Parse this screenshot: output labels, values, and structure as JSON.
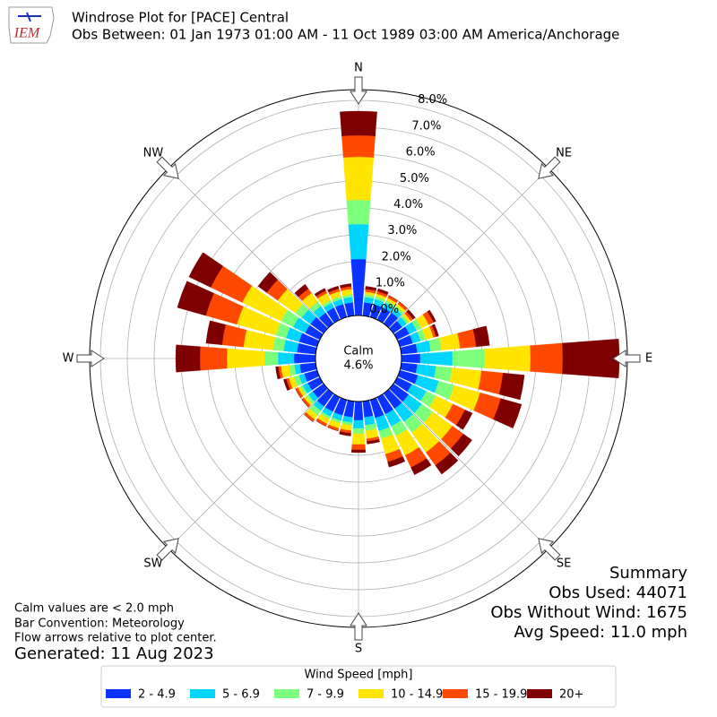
{
  "logo_text": "IEM",
  "chart_data": {
    "type": "windrose",
    "title": "Windrose Plot for [PACE] Central",
    "subtitle": "Obs Between: 01 Jan 1973 01:00 AM - 11 Oct 1989 03:00 AM America/Anchorage",
    "compass": [
      "N",
      "NE",
      "E",
      "SE",
      "S",
      "SW",
      "W",
      "NW"
    ],
    "x": [
      0,
      10,
      20,
      30,
      40,
      50,
      60,
      70,
      80,
      90,
      100,
      110,
      120,
      130,
      140,
      150,
      160,
      170,
      180,
      190,
      200,
      210,
      220,
      230,
      240,
      250,
      260,
      270,
      280,
      290,
      300,
      310,
      320,
      330,
      340,
      350
    ],
    "ylim": [
      0,
      8.4
    ],
    "yticks": [
      {
        "value": 0,
        "label": "0.0%"
      },
      {
        "value": 1,
        "label": "1.0%"
      },
      {
        "value": 2,
        "label": "2.0%"
      },
      {
        "value": 3,
        "label": "3.0%"
      },
      {
        "value": 4,
        "label": "4.0%"
      },
      {
        "value": 5,
        "label": "5.0%"
      },
      {
        "value": 6,
        "label": "6.0%"
      },
      {
        "value": 7,
        "label": "7.0%"
      },
      {
        "value": 8,
        "label": "8.0%"
      }
    ],
    "grid": true,
    "calm_label": "Calm",
    "calm": {
      "value": 4.6,
      "label": "4.6%"
    },
    "legend_title": "Wind Speed [mph]",
    "series": [
      {
        "name": "2 - 4.9",
        "color": "#0a33ff",
        "values": [
          2.1,
          0.5,
          0.5,
          0.5,
          0.5,
          0.4,
          0.5,
          0.5,
          0.6,
          0.7,
          0.6,
          0.7,
          0.6,
          0.7,
          0.7,
          0.7,
          0.7,
          0.6,
          0.7,
          0.6,
          0.6,
          0.6,
          0.6,
          0.5,
          0.5,
          0.5,
          0.6,
          0.8,
          0.7,
          0.7,
          0.6,
          0.6,
          0.5,
          0.5,
          0.5,
          0.5
        ]
      },
      {
        "name": "5 - 6.9",
        "color": "#00d5ff",
        "values": [
          1.3,
          0.2,
          0.2,
          0.2,
          0.2,
          0.2,
          0.3,
          0.3,
          0.5,
          1.2,
          0.7,
          0.8,
          0.6,
          0.6,
          0.6,
          0.5,
          0.5,
          0.3,
          0.3,
          0.2,
          0.2,
          0.2,
          0.2,
          0.2,
          0.2,
          0.2,
          0.2,
          0.6,
          0.5,
          0.5,
          0.5,
          0.4,
          0.3,
          0.2,
          0.2,
          0.2
        ]
      },
      {
        "name": "7 - 9.9",
        "color": "#7cff7a",
        "values": [
          0.9,
          0.1,
          0.1,
          0.1,
          0.1,
          0.1,
          0.2,
          0.2,
          0.4,
          1.2,
          0.6,
          0.6,
          0.4,
          0.5,
          0.5,
          0.4,
          0.3,
          0.2,
          0.2,
          0.1,
          0.1,
          0.1,
          0.2,
          0.1,
          0.1,
          0.2,
          0.2,
          0.5,
          0.4,
          0.4,
          0.5,
          0.3,
          0.2,
          0.1,
          0.1,
          0.1
        ]
      },
      {
        "name": "10 - 14.9",
        "color": "#ffe500",
        "values": [
          1.6,
          0.1,
          0.1,
          0.1,
          0.1,
          0.1,
          0.3,
          0.3,
          0.7,
          1.7,
          1.1,
          1.0,
          0.7,
          0.9,
          0.9,
          0.8,
          0.6,
          0.3,
          0.4,
          0.2,
          0.2,
          0.2,
          0.2,
          0.1,
          0.1,
          0.2,
          0.3,
          1.4,
          1.1,
          1.5,
          1.6,
          0.8,
          0.4,
          0.3,
          0.2,
          0.2
        ]
      },
      {
        "name": "15 - 19.9",
        "color": "#ff4800",
        "values": [
          0.8,
          0.1,
          0.1,
          0.1,
          0.1,
          0.1,
          0.2,
          0.1,
          0.6,
          1.2,
          0.8,
          0.8,
          0.5,
          0.5,
          0.6,
          0.5,
          0.3,
          0.1,
          0.2,
          0.1,
          0.1,
          0.1,
          0.1,
          0.1,
          0.1,
          0.1,
          0.1,
          1.0,
          0.8,
          1.2,
          1.3,
          0.5,
          0.2,
          0.1,
          0.1,
          0.1
        ]
      },
      {
        "name": "20+",
        "color": "#7f0000",
        "values": [
          0.9,
          0.1,
          0.1,
          0.0,
          0.0,
          0.1,
          0.1,
          0.1,
          0.5,
          2.1,
          0.8,
          0.8,
          0.3,
          0.4,
          0.4,
          0.3,
          0.2,
          0.1,
          0.1,
          0.1,
          0.0,
          0.0,
          0.0,
          0.0,
          0.0,
          0.1,
          0.1,
          0.9,
          0.6,
          1.1,
          0.9,
          0.4,
          0.2,
          0.1,
          0.1,
          0.1
        ]
      }
    ]
  },
  "notes": [
    "Calm values are < 2.0 mph",
    "Bar Convention: Meteorology",
    "Flow arrows relative to plot center."
  ],
  "generated": "Generated: 11 Aug 2023",
  "summary": [
    "Summary",
    "Obs Used: 44071",
    "Obs Without Wind: 1675",
    "Avg Speed: 11.0 mph"
  ]
}
